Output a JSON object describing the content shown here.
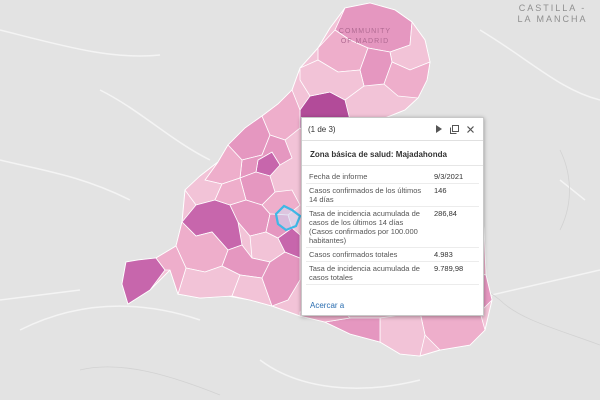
{
  "map_labels": {
    "region_east_line1": "CASTILLA -",
    "region_east_line2": "LA MANCHA",
    "region_main_line1": "COMMUNITY",
    "region_main_line2": "OF MADRID"
  },
  "colors": {
    "background": "#e3e3e3",
    "zone_light": "#f2c3d7",
    "zone_medium": "#e597c0",
    "zone_dark": "#c766ac",
    "zone_darkest": "#b24b99",
    "selected_outline": "#3fb8e6"
  },
  "popup": {
    "count": "(1 de 3)",
    "icons": [
      "play-icon",
      "maximize-icon",
      "close-icon"
    ],
    "title": "Zona básica de salud: Majadahonda",
    "fields": [
      {
        "label": "Fecha de informe",
        "value": "9/3/2021"
      },
      {
        "label": "Casos confirmados de los últimos 14 días",
        "value": "146"
      },
      {
        "label": "Tasa de incidencia acumulada de casos de los últimos 14 días (Casos confirmados por 100.000 habitantes)",
        "value": "286,84"
      },
      {
        "label": "Casos confirmados totales",
        "value": "4.983"
      },
      {
        "label": "Tasa de incidencia acumulada de casos totales",
        "value": "9.789,98"
      }
    ],
    "zoom_link": "Acercar a"
  }
}
